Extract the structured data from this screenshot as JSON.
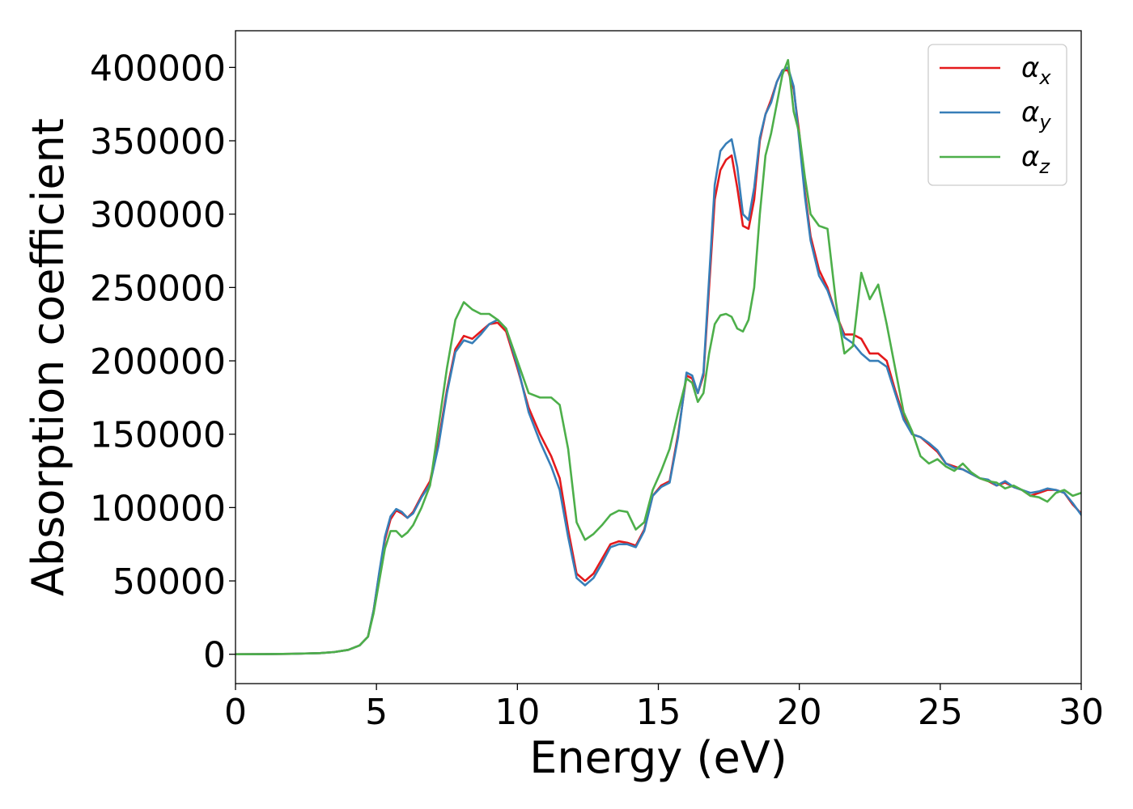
{
  "chart_data": {
    "type": "line",
    "title": "",
    "xlabel": "Energy (eV)",
    "ylabel": "Absorption coefficient",
    "xlim": [
      0,
      30
    ],
    "ylim": [
      -20000,
      425000
    ],
    "xticks": [
      0,
      5,
      10,
      15,
      20,
      25,
      30
    ],
    "yticks": [
      0,
      50000,
      100000,
      150000,
      200000,
      250000,
      300000,
      350000,
      400000
    ],
    "grid": false,
    "legend_position": "top-right",
    "series": [
      {
        "name": "α_x",
        "label_main": "α",
        "label_sub": "x",
        "color": "#e41a1c",
        "x": [
          0,
          1,
          2,
          3,
          3.5,
          4,
          4.4,
          4.7,
          4.9,
          5.1,
          5.3,
          5.5,
          5.7,
          5.9,
          6.1,
          6.3,
          6.6,
          6.9,
          7.2,
          7.5,
          7.8,
          8.1,
          8.4,
          8.7,
          9.0,
          9.3,
          9.6,
          10.0,
          10.4,
          10.8,
          11.2,
          11.5,
          11.8,
          12.1,
          12.4,
          12.7,
          13.0,
          13.3,
          13.6,
          13.9,
          14.2,
          14.5,
          14.8,
          15.1,
          15.4,
          15.7,
          16.0,
          16.2,
          16.4,
          16.6,
          16.8,
          17.0,
          17.2,
          17.4,
          17.6,
          17.8,
          18.0,
          18.2,
          18.4,
          18.6,
          18.8,
          19.0,
          19.2,
          19.4,
          19.6,
          19.8,
          20.0,
          20.2,
          20.4,
          20.7,
          21.0,
          21.3,
          21.6,
          21.9,
          22.2,
          22.5,
          22.8,
          23.1,
          23.4,
          23.7,
          24.0,
          24.3,
          24.6,
          24.9,
          25.2,
          25.5,
          25.8,
          26.1,
          26.4,
          26.7,
          27.0,
          27.3,
          27.6,
          27.9,
          28.2,
          28.5,
          28.8,
          29.1,
          29.4,
          29.7,
          30.0
        ],
        "y": [
          0,
          100,
          300,
          800,
          1500,
          3000,
          6000,
          12000,
          30000,
          55000,
          78000,
          92000,
          98000,
          96000,
          93000,
          97000,
          108000,
          118000,
          145000,
          180000,
          208000,
          217000,
          215000,
          220000,
          225000,
          226000,
          220000,
          195000,
          168000,
          150000,
          135000,
          120000,
          85000,
          55000,
          50000,
          55000,
          65000,
          75000,
          77000,
          76000,
          74000,
          85000,
          108000,
          115000,
          118000,
          150000,
          190000,
          188000,
          178000,
          190000,
          250000,
          310000,
          330000,
          337000,
          340000,
          318000,
          292000,
          290000,
          310000,
          350000,
          368000,
          378000,
          390000,
          398000,
          398000,
          385000,
          355000,
          315000,
          285000,
          262000,
          250000,
          232000,
          218000,
          218000,
          215000,
          205000,
          205000,
          200000,
          180000,
          162000,
          150000,
          148000,
          143000,
          138000,
          130000,
          128000,
          126000,
          123000,
          120000,
          118000,
          115000,
          117000,
          114000,
          112000,
          108000,
          110000,
          112000,
          112000,
          110000,
          102000,
          96000
        ]
      },
      {
        "name": "α_y",
        "label_main": "α",
        "label_sub": "y",
        "color": "#377eb8",
        "x": [
          0,
          1,
          2,
          3,
          3.5,
          4,
          4.4,
          4.7,
          4.9,
          5.1,
          5.3,
          5.5,
          5.7,
          5.9,
          6.1,
          6.3,
          6.6,
          6.9,
          7.2,
          7.5,
          7.8,
          8.1,
          8.4,
          8.7,
          9.0,
          9.3,
          9.6,
          10.0,
          10.4,
          10.8,
          11.2,
          11.5,
          11.8,
          12.1,
          12.4,
          12.7,
          13.0,
          13.3,
          13.6,
          13.9,
          14.2,
          14.5,
          14.8,
          15.1,
          15.4,
          15.7,
          16.0,
          16.2,
          16.4,
          16.6,
          16.8,
          17.0,
          17.2,
          17.4,
          17.6,
          17.8,
          18.0,
          18.2,
          18.4,
          18.6,
          18.8,
          19.0,
          19.2,
          19.4,
          19.6,
          19.8,
          20.0,
          20.2,
          20.4,
          20.7,
          21.0,
          21.3,
          21.6,
          21.9,
          22.2,
          22.5,
          22.8,
          23.1,
          23.4,
          23.7,
          24.0,
          24.3,
          24.6,
          24.9,
          25.2,
          25.5,
          25.8,
          26.1,
          26.4,
          26.7,
          27.0,
          27.3,
          27.6,
          27.9,
          28.2,
          28.5,
          28.8,
          29.1,
          29.4,
          29.7,
          30.0
        ],
        "y": [
          0,
          100,
          300,
          800,
          1500,
          3000,
          6000,
          12000,
          30000,
          56000,
          80000,
          94000,
          99000,
          97000,
          93000,
          96000,
          107000,
          116000,
          142000,
          178000,
          206000,
          214000,
          212000,
          218000,
          225000,
          228000,
          222000,
          197000,
          165000,
          145000,
          128000,
          112000,
          80000,
          52000,
          47000,
          52000,
          62000,
          73000,
          75000,
          75000,
          73000,
          84000,
          108000,
          114000,
          117000,
          148000,
          192000,
          190000,
          178000,
          192000,
          256000,
          320000,
          343000,
          348000,
          351000,
          332000,
          300000,
          296000,
          318000,
          352000,
          368000,
          376000,
          390000,
          398000,
          400000,
          387000,
          350000,
          312000,
          282000,
          258000,
          248000,
          232000,
          216000,
          212000,
          205000,
          200000,
          200000,
          196000,
          178000,
          160000,
          150000,
          148000,
          144000,
          139000,
          130000,
          127000,
          126000,
          123000,
          120000,
          119000,
          115000,
          118000,
          114000,
          112000,
          110000,
          111000,
          113000,
          112000,
          110000,
          103000,
          95000
        ]
      },
      {
        "name": "α_z",
        "label_main": "α",
        "label_sub": "z",
        "color": "#4daf4a",
        "x": [
          0,
          1,
          2,
          3,
          3.5,
          4,
          4.4,
          4.7,
          4.9,
          5.1,
          5.3,
          5.5,
          5.7,
          5.9,
          6.1,
          6.3,
          6.6,
          6.9,
          7.2,
          7.5,
          7.8,
          8.1,
          8.4,
          8.7,
          9.0,
          9.3,
          9.6,
          10.0,
          10.4,
          10.8,
          11.2,
          11.5,
          11.8,
          12.1,
          12.4,
          12.7,
          13.0,
          13.3,
          13.6,
          13.9,
          14.2,
          14.5,
          14.8,
          15.1,
          15.4,
          15.7,
          16.0,
          16.2,
          16.4,
          16.6,
          16.8,
          17.0,
          17.2,
          17.4,
          17.6,
          17.8,
          18.0,
          18.2,
          18.4,
          18.6,
          18.8,
          19.0,
          19.2,
          19.4,
          19.6,
          19.8,
          20.0,
          20.2,
          20.4,
          20.7,
          21.0,
          21.3,
          21.6,
          21.9,
          22.2,
          22.5,
          22.8,
          23.1,
          23.4,
          23.7,
          24.0,
          24.3,
          24.6,
          24.9,
          25.2,
          25.5,
          25.8,
          26.1,
          26.4,
          26.7,
          27.0,
          27.3,
          27.6,
          27.9,
          28.2,
          28.5,
          28.8,
          29.1,
          29.4,
          29.7,
          30.0
        ],
        "y": [
          0,
          100,
          300,
          800,
          1500,
          3000,
          6000,
          12000,
          28000,
          50000,
          72000,
          84000,
          84000,
          80000,
          83000,
          88000,
          100000,
          115000,
          155000,
          195000,
          228000,
          240000,
          235000,
          232000,
          232000,
          228000,
          222000,
          200000,
          178000,
          175000,
          175000,
          170000,
          140000,
          90000,
          78000,
          82000,
          88000,
          95000,
          98000,
          97000,
          85000,
          90000,
          112000,
          125000,
          140000,
          165000,
          188000,
          185000,
          172000,
          178000,
          205000,
          225000,
          231000,
          232000,
          230000,
          222000,
          220000,
          228000,
          250000,
          300000,
          340000,
          355000,
          375000,
          395000,
          405000,
          370000,
          355000,
          325000,
          300000,
          292000,
          290000,
          240000,
          205000,
          210000,
          260000,
          242000,
          252000,
          225000,
          195000,
          165000,
          152000,
          135000,
          130000,
          133000,
          128000,
          125000,
          130000,
          124000,
          120000,
          118000,
          117000,
          113000,
          115000,
          112000,
          108000,
          107000,
          104000,
          110000,
          112000,
          108000,
          110000
        ]
      }
    ]
  }
}
